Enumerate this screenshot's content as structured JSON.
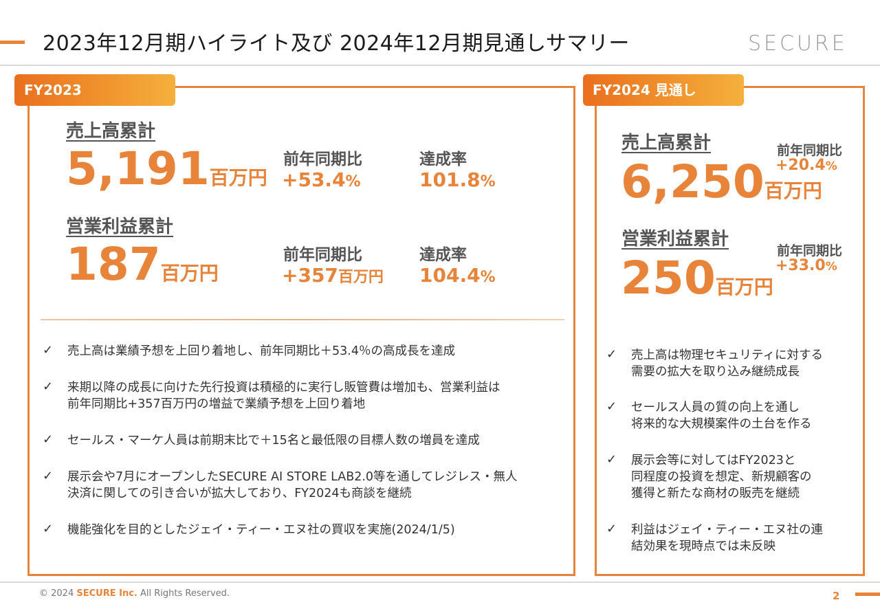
{
  "header": {
    "title": "2023年12月期ハイライト及び 2024年12月期見通しサマリー",
    "logo_text": "SECURE"
  },
  "fy2023": {
    "tab_label": "FY2023",
    "sales": {
      "title": "売上高累計",
      "value": "5,191",
      "unit": "百万円",
      "yoy_label": "前年同期比",
      "yoy_value": "+53.4",
      "yoy_pct": "%",
      "achieve_label": "達成率",
      "achieve_value": "101.8",
      "achieve_pct": "%"
    },
    "profit": {
      "title": "営業利益累計",
      "value": "187",
      "unit": "百万円",
      "yoy_label": "前年同期比",
      "yoy_value": "+357",
      "yoy_unit": "百万円",
      "achieve_label": "達成率",
      "achieve_value": "104.4",
      "achieve_pct": "%"
    },
    "bullets": [
      {
        "check": "✓",
        "lines": [
          "売上高は業績予想を上回り着地し、前年同期比＋53.4％の高成長を達成"
        ]
      },
      {
        "check": "✓",
        "lines": [
          "来期以降の成長に向けた先行投資は積極的に実行し販管費は増加も、営業利益は",
          "前年同期比+357百万円の増益で業績予想を上回り着地"
        ]
      },
      {
        "check": "✓",
        "lines": [
          "セールス・マーケ人員は前期末比で＋15名と最低限の目標人数の増員を達成"
        ]
      },
      {
        "check": "✓",
        "lines": [
          "展示会や7月にオープンしたSECURE AI STORE LAB2.0等を通してレジレス・無人",
          "決済に関しての引き合いが拡大しており、FY2024も商談を継続"
        ]
      },
      {
        "check": "✓",
        "lines": [
          "機能強化を目的としたジェイ・ティー・エヌ社の買収を実施(2024/1/5)"
        ]
      }
    ]
  },
  "fy2024": {
    "tab_label": "FY2024 見通し",
    "sales": {
      "title": "売上高累計",
      "value": "6,250",
      "unit": "百万円",
      "yoy_label": "前年同期比",
      "yoy_value": "+20.4",
      "yoy_pct": "%"
    },
    "profit": {
      "title": "営業利益累計",
      "value": "250",
      "unit": "百万円",
      "yoy_label": "前年同期比",
      "yoy_value": "+33.0",
      "yoy_pct": "%"
    },
    "bullets": [
      {
        "check": "✓",
        "lines": [
          "売上高は物理セキュリティに対する",
          "需要の拡大を取り込み継続成長"
        ]
      },
      {
        "check": "✓",
        "lines": [
          "セールス人員の質の向上を通し",
          "将来的な大規模案件の土台を作る"
        ]
      },
      {
        "check": "✓",
        "lines": [
          "展示会等に対してはFY2023と",
          "同程度の投資を想定、新規顧客の",
          "獲得と新たな商材の販売を継続"
        ]
      },
      {
        "check": "✓",
        "lines": [
          "利益はジェイ・ティー・エヌ社の連",
          "結効果を現時点では未反映"
        ]
      }
    ]
  },
  "footer": {
    "copyright_prefix": "© 2024 ",
    "copyright_brand": "SECURE Inc.",
    "copyright_suffix": " All Rights Reserved.",
    "page_number": "2"
  },
  "colors": {
    "accent": "#e8833a",
    "tab_gradient_start": "#ea6f1e",
    "tab_gradient_end": "#f5b03c",
    "text": "#333333"
  }
}
